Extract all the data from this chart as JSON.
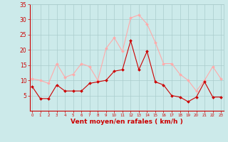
{
  "hours": [
    0,
    1,
    2,
    3,
    4,
    5,
    6,
    7,
    8,
    9,
    10,
    11,
    12,
    13,
    14,
    15,
    16,
    17,
    18,
    19,
    20,
    21,
    22,
    23
  ],
  "wind_mean": [
    8,
    4,
    4,
    8.5,
    6.5,
    6.5,
    6.5,
    9,
    9.5,
    10,
    13,
    13.5,
    23,
    13.5,
    19.5,
    9.5,
    8.5,
    5,
    4.5,
    3,
    4.5,
    9.5,
    4.5,
    4.5
  ],
  "wind_gust": [
    10.5,
    10,
    9,
    15.5,
    11,
    12,
    15.5,
    14.5,
    10,
    20.5,
    24,
    19.5,
    30.5,
    31.5,
    28.5,
    22.5,
    15.5,
    15.5,
    12,
    10,
    6.5,
    10,
    14.5,
    10.5
  ],
  "mean_color": "#cc0000",
  "gust_color": "#ffaaaa",
  "bg_color": "#cceaea",
  "grid_color": "#aacccc",
  "xlabel": "Vent moyen/en rafales ( km/h )",
  "xlabel_color": "#cc0000",
  "tick_color": "#cc0000",
  "spine_color": "#cc0000",
  "ylim": [
    0,
    35
  ],
  "yticks": [
    5,
    10,
    15,
    20,
    25,
    30,
    35
  ],
  "ytick_labels": [
    "5",
    "10",
    "15",
    "20",
    "25",
    "30",
    "35"
  ]
}
